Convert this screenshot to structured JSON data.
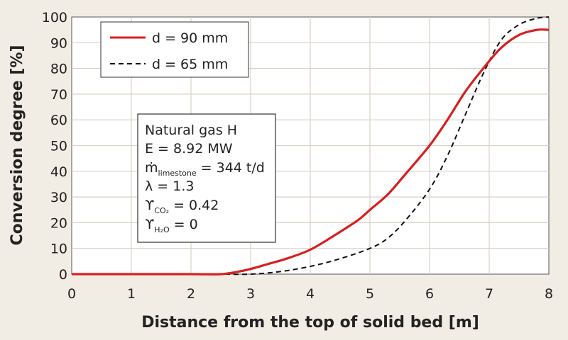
{
  "chart_data": {
    "type": "line",
    "xlabel": "Distance from the top of solid bed [m]",
    "ylabel": "Conversion degree [%]",
    "xlim": [
      0,
      8
    ],
    "ylim": [
      0,
      100
    ],
    "xticks": [
      0,
      1,
      2,
      3,
      4,
      5,
      6,
      7,
      8
    ],
    "yticks": [
      0,
      10,
      20,
      30,
      40,
      50,
      60,
      70,
      80,
      90,
      100
    ],
    "grid": true,
    "legend_position": "top-left",
    "series": [
      {
        "name": "d = 90 mm",
        "color": "#d6201f",
        "style": "solid",
        "x": [
          0,
          1,
          2,
          2.5,
          2.8,
          3.0,
          3.3,
          3.6,
          4.0,
          4.4,
          4.8,
          5.0,
          5.3,
          5.6,
          6.0,
          6.3,
          6.6,
          6.9,
          7.2,
          7.5,
          7.8,
          8.0
        ],
        "y": [
          0,
          0,
          0,
          0,
          1,
          2,
          4,
          6,
          9.5,
          15,
          21,
          25,
          31,
          39,
          50,
          60,
          71,
          80,
          88,
          93,
          95,
          95
        ]
      },
      {
        "name": "d = 65 mm",
        "color": "#111111",
        "style": "dashed",
        "x": [
          0,
          1,
          2,
          2.5,
          3.0,
          3.5,
          4.0,
          4.5,
          5.0,
          5.3,
          5.6,
          6.0,
          6.3,
          6.6,
          6.9,
          7.2,
          7.5,
          7.8,
          8.0
        ],
        "y": [
          0,
          0,
          0,
          0,
          0,
          1,
          3,
          6,
          10,
          14,
          21,
          33,
          46,
          62,
          78,
          91,
          97,
          99.5,
          100
        ]
      }
    ],
    "annotation": {
      "line1": "Natural gas H",
      "line2": "E = 8.92 MW",
      "line3_main": "ṁ",
      "line3_sub": "limestone",
      "line3_value": " = 344 t/d",
      "line4": "λ = 1.3",
      "line5_main": "ϒ",
      "line5_sub": "CO₂",
      "line5_value": "  = 0.42",
      "line6_main": "ϒ",
      "line6_sub": "H₂O",
      "line6_value": "  = 0"
    }
  }
}
